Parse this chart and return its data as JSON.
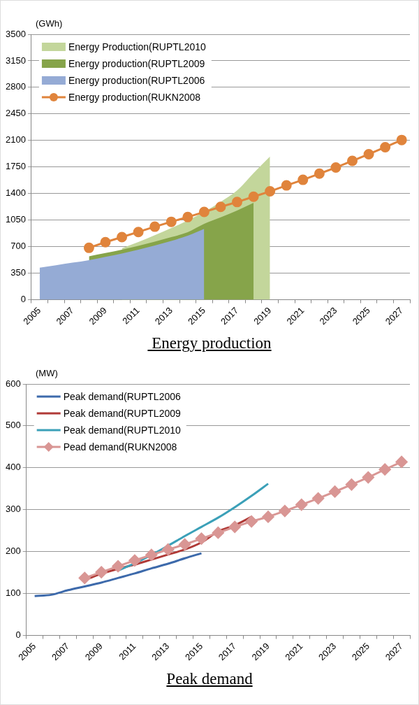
{
  "chart_data": [
    {
      "type": "area",
      "title": " Energy production",
      "ylabel": "(GWh)",
      "categories": [
        "2005",
        null,
        "2007",
        null,
        "2009",
        null,
        "2011",
        null,
        "2013",
        null,
        "2015",
        null,
        "2017",
        null,
        "2019",
        null,
        "2021",
        null,
        "2023",
        null,
        "2025",
        null,
        "2027"
      ],
      "ylim": [
        0,
        3500
      ],
      "yticks": [
        0,
        350,
        700,
        1050,
        1400,
        1750,
        2100,
        2450,
        2800,
        3150,
        3500
      ],
      "grid": "y",
      "legend": "top left",
      "series": [
        {
          "name": "Energy Production(RUPTL2010",
          "color": "#c3d69b",
          "values": [
            null,
            null,
            null,
            null,
            null,
            677,
            760,
            850,
            945,
            1045,
            1160,
            1290,
            1440,
            1670,
            1888,
            null,
            null,
            null,
            null,
            null,
            null,
            null,
            null
          ]
        },
        {
          "name": "Energy production(RUPTL2009",
          "color": "#86a44a",
          "values": [
            null,
            null,
            null,
            572,
            615,
            660,
            710,
            765,
            825,
            890,
            1000,
            1085,
            1175,
            1277,
            null,
            null,
            null,
            null,
            null,
            null,
            null,
            null,
            null
          ]
        },
        {
          "name": "Energy production(RUPTL2006",
          "color": "#95abd5",
          "values": [
            423,
            455,
            488,
            522,
            565,
            610,
            660,
            715,
            775,
            845,
            935,
            null,
            null,
            null,
            null,
            null,
            null,
            null,
            null,
            null,
            null,
            null,
            null
          ]
        },
        {
          "name": "Energy production(RUKN2008",
          "type": "line",
          "marker": "circle",
          "color": "#e0843c",
          "values": [
            null,
            null,
            null,
            684,
            759,
            826,
            893,
            963,
            1027,
            1090,
            1157,
            1224,
            1288,
            1358,
            1429,
            1507,
            1581,
            1662,
            1743,
            1831,
            1919,
            2011,
            2106
          ]
        }
      ]
    },
    {
      "type": "line",
      "title": "Peak demand",
      "ylabel": "(MW)",
      "categories": [
        "2005",
        null,
        "2007",
        null,
        "2009",
        null,
        "2011",
        null,
        "2013",
        null,
        "2015",
        null,
        "2017",
        null,
        "2019",
        null,
        "2021",
        null,
        "2023",
        null,
        "2025",
        null,
        "2027"
      ],
      "ylim": [
        0,
        600
      ],
      "yticks": [
        0,
        100,
        200,
        300,
        400,
        500,
        600
      ],
      "grid": "y",
      "legend": "top left",
      "series": [
        {
          "name": "Peak demand(RUPTL2006",
          "color": "#3d6aab",
          "values": [
            94,
            97,
            108,
            117,
            126,
            137,
            148,
            160,
            171,
            184,
            196,
            null,
            null,
            null,
            null,
            null,
            null,
            null,
            null,
            null,
            null,
            null,
            null
          ]
        },
        {
          "name": "Peak demand(RUPTL2009",
          "color": "#b03a37",
          "values": [
            null,
            null,
            null,
            132,
            147,
            159,
            169,
            181,
            193,
            205,
            222,
            248,
            263,
            283,
            null,
            null,
            null,
            null,
            null,
            null,
            null,
            null,
            null
          ]
        },
        {
          "name": "Peak demand(RUPTL2010",
          "color": "#3ba0b8",
          "values": [
            null,
            null,
            null,
            null,
            null,
            155,
            172,
            192,
            214,
            237,
            259,
            281,
            306,
            333,
            362,
            null,
            null,
            null,
            null,
            null,
            null,
            null,
            null
          ]
        },
        {
          "name": "Pead demand(RUKN2008",
          "marker": "diamond",
          "color": "#d99694",
          "values": [
            null,
            null,
            null,
            137,
            151,
            165,
            179,
            192,
            205,
            217,
            231,
            245,
            259,
            272,
            283,
            297,
            312,
            327,
            343,
            360,
            377,
            396,
            414
          ]
        }
      ]
    }
  ]
}
